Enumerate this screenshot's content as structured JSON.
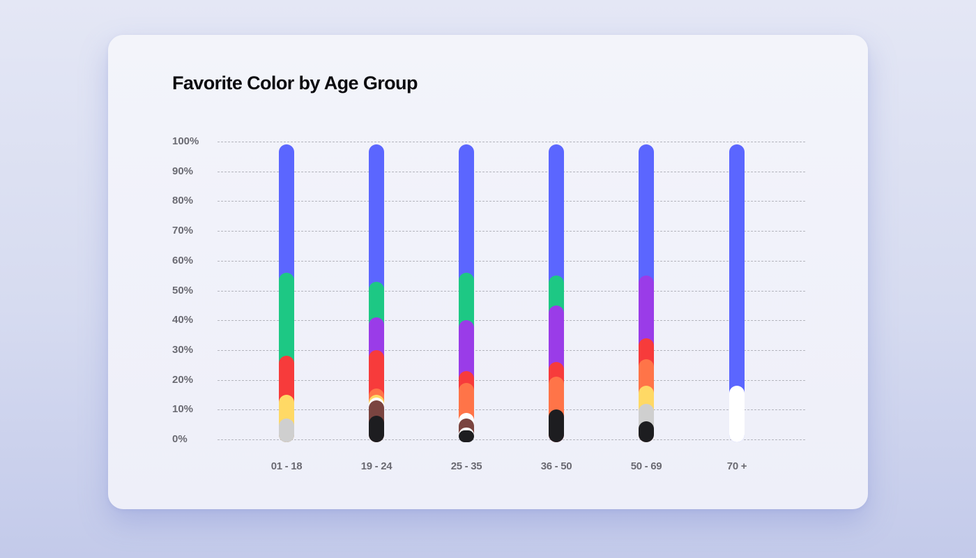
{
  "title": "Favorite Color by Age Group",
  "colors": {
    "blue": "#5B66FF",
    "green": "#1DC884",
    "purple": "#9A3CE8",
    "red": "#F73B3B",
    "orange": "#FF7448",
    "yellow": "#FFD965",
    "gray": "#CFCFCF",
    "brown": "#7A4440",
    "black": "#1D1D20",
    "white": "#FFFFFF"
  },
  "y_ticks": [
    "100%",
    "90%",
    "80%",
    "70%",
    "60%",
    "50%",
    "40%",
    "30%",
    "20%",
    "10%",
    "0%"
  ],
  "x_ticks": [
    "01 - 18",
    "19 - 24",
    "25 - 35",
    "36 - 50",
    "50 - 69",
    "70 +"
  ],
  "chart_data": {
    "type": "bar",
    "stacked": true,
    "title": "Favorite Color by Age Group",
    "xlabel": "",
    "ylabel": "",
    "ylim": [
      0,
      100
    ],
    "grid": true,
    "legend": "none",
    "categories": [
      "01 - 18",
      "19 - 24",
      "25 - 35",
      "36 - 50",
      "50 - 69",
      "70 +"
    ],
    "series_stack_order_bottom_to_top": [
      "black",
      "white_low",
      "brown",
      "white",
      "gray",
      "yellow",
      "orange",
      "red",
      "purple",
      "green",
      "blue"
    ],
    "bars": [
      {
        "category": "01 - 18",
        "segments": [
          {
            "color": "gray",
            "value": 7
          },
          {
            "color": "yellow",
            "value": 8
          },
          {
            "color": "red",
            "value": 13
          },
          {
            "color": "green",
            "value": 28
          },
          {
            "color": "blue",
            "value": 43
          }
        ]
      },
      {
        "category": "19 - 24",
        "segments": [
          {
            "color": "black",
            "value": 8
          },
          {
            "color": "brown",
            "value": 5
          },
          {
            "color": "white",
            "value": 1
          },
          {
            "color": "yellow",
            "value": 1
          },
          {
            "color": "orange",
            "value": 2
          },
          {
            "color": "red",
            "value": 13
          },
          {
            "color": "purple",
            "value": 11
          },
          {
            "color": "green",
            "value": 12
          },
          {
            "color": "blue",
            "value": 46
          }
        ]
      },
      {
        "category": "25 - 35",
        "segments": [
          {
            "color": "black",
            "value": 3
          },
          {
            "color": "white",
            "value": 1
          },
          {
            "color": "brown",
            "value": 3
          },
          {
            "color": "white",
            "value": 2
          },
          {
            "color": "orange",
            "value": 10
          },
          {
            "color": "red",
            "value": 4
          },
          {
            "color": "purple",
            "value": 17
          },
          {
            "color": "green",
            "value": 16
          },
          {
            "color": "blue",
            "value": 43
          }
        ]
      },
      {
        "category": "36 - 50",
        "segments": [
          {
            "color": "black",
            "value": 10
          },
          {
            "color": "orange",
            "value": 11
          },
          {
            "color": "red",
            "value": 5
          },
          {
            "color": "purple",
            "value": 19
          },
          {
            "color": "green",
            "value": 10
          },
          {
            "color": "blue",
            "value": 44
          }
        ]
      },
      {
        "category": "50 - 69",
        "segments": [
          {
            "color": "black",
            "value": 6
          },
          {
            "color": "gray",
            "value": 6
          },
          {
            "color": "yellow",
            "value": 6
          },
          {
            "color": "orange",
            "value": 9
          },
          {
            "color": "red",
            "value": 7
          },
          {
            "color": "purple",
            "value": 21
          },
          {
            "color": "blue",
            "value": 44
          }
        ]
      },
      {
        "category": "70 +",
        "segments": [
          {
            "color": "white",
            "value": 18
          },
          {
            "color": "blue",
            "value": 81
          }
        ]
      }
    ]
  }
}
